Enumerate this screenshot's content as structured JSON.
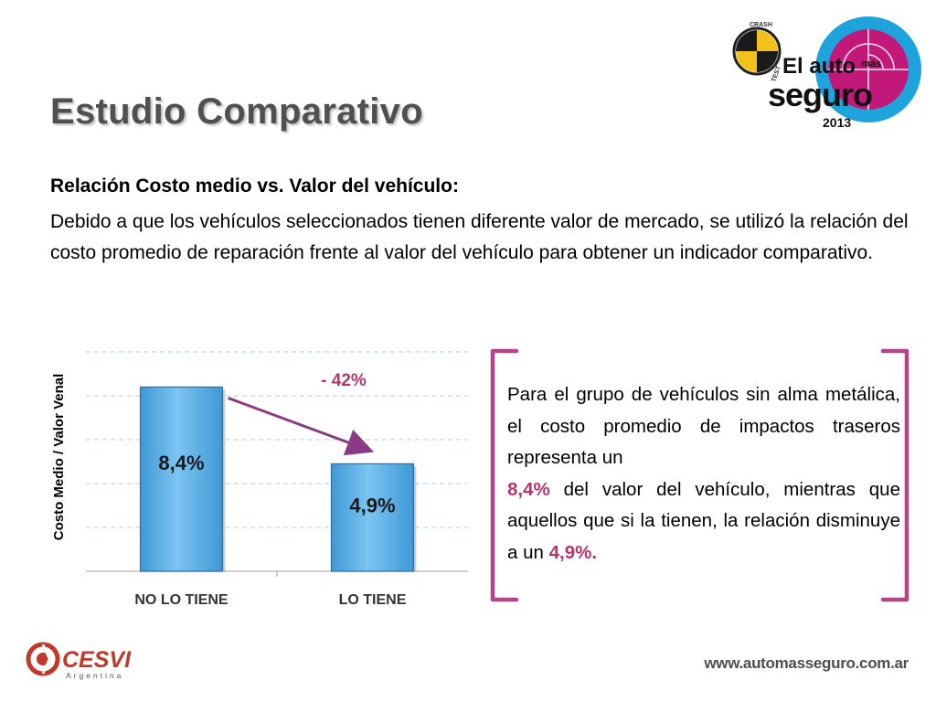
{
  "slide": {
    "title": "Estudio Comparativo",
    "subtitle": "Relación Costo medio vs. Valor del vehículo:",
    "paragraph": "Debido a que los vehículos seleccionados tienen diferente valor de mercado, se utilizó la relación del costo promedio de reparación frente al valor del vehículo para obtener un indicador comparativo."
  },
  "logo_top": {
    "line1": "El auto",
    "line1_small": "más",
    "line2": "seguro",
    "year": "2013",
    "badge_top": "CRASH",
    "badge_side": "TEST"
  },
  "chart_data": {
    "type": "bar",
    "categories": [
      "NO LO TIENE",
      "LO TIENE"
    ],
    "values": [
      8.4,
      4.9
    ],
    "value_labels": [
      "8,4%",
      "4,9%"
    ],
    "ylabel": "Costo Medio / Valor Venal",
    "ylim": [
      0,
      10
    ],
    "grid": true,
    "annotation": "- 42%",
    "bar_color": "#5fb3e8",
    "annotation_color": "#b5336f"
  },
  "callout": {
    "text_1": "Para el grupo de vehículos sin alma metálica, el costo promedio de impactos traseros representa un",
    "hl_1": "8,4%",
    "text_2": "del valor del vehículo, mientras que aquellos que si la tienen, la relación disminuye a un",
    "hl_2": "4,9%."
  },
  "footer": {
    "logo_name": "CESVI",
    "logo_sub": "Argentina",
    "website": "www.automasseguro.com.ar"
  },
  "colors": {
    "accent": "#b5336f",
    "title": "#505050",
    "bar": "#5fb3e8",
    "logo_magenta": "#c2187a",
    "logo_cyan": "#1fa3dc",
    "logo_yellow": "#f2c21b"
  }
}
